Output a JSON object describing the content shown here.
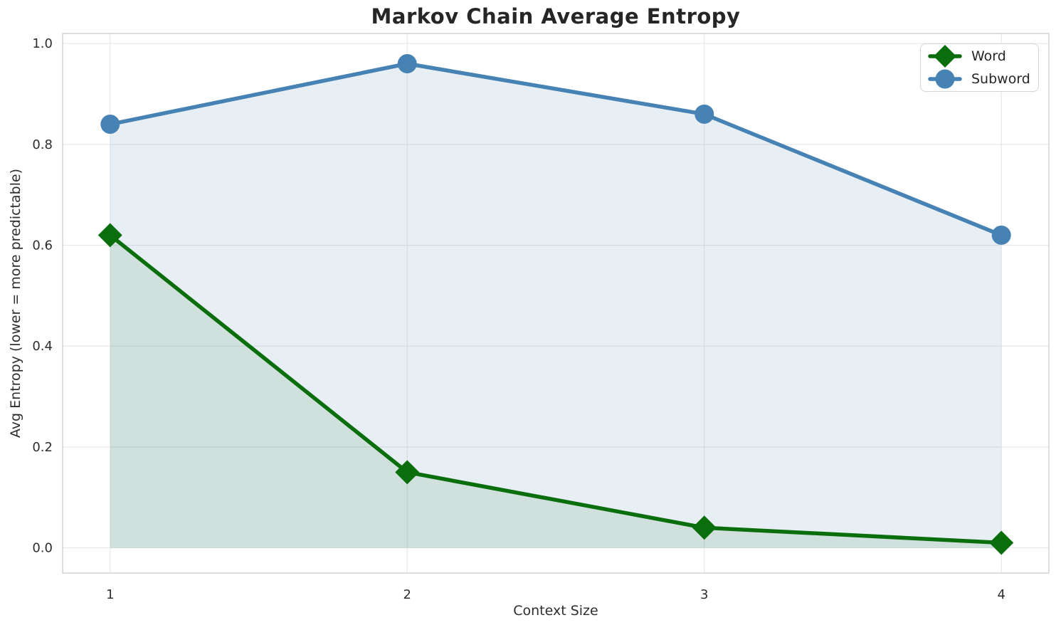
{
  "chart_data": {
    "type": "line",
    "title": "Markov Chain Average Entropy",
    "xlabel": "Context Size",
    "ylabel": "Avg Entropy (lower = more predictable)",
    "x": [
      1,
      2,
      3,
      4
    ],
    "series": [
      {
        "name": "Word",
        "values": [
          0.62,
          0.15,
          0.04,
          0.01
        ],
        "color": "#0a6e0c",
        "marker": "diamond",
        "fill_opacity": 0.1
      },
      {
        "name": "Subword",
        "values": [
          0.84,
          0.96,
          0.86,
          0.62
        ],
        "color": "#4682b4",
        "marker": "circle",
        "fill_opacity": 0.13
      }
    ],
    "xticks": [
      1,
      2,
      3,
      4
    ],
    "xtick_labels": [
      "1",
      "2",
      "3",
      "4"
    ],
    "yticks": [
      0,
      0.2,
      0.4,
      0.6,
      0.8,
      1.0
    ],
    "ytick_labels": [
      "0.0",
      "0.2",
      "0.4",
      "0.6",
      "0.8",
      "1.0"
    ],
    "xlim": [
      0.84,
      4.16
    ],
    "ylim": [
      -0.05,
      1.02
    ],
    "grid": true,
    "legend_position": "upper right",
    "area_baseline": 0,
    "line_width": 5.5,
    "axis_colors": {
      "grid": "#e8e8e8",
      "spine": "#cccccc",
      "text": "#2e2e2e"
    }
  }
}
